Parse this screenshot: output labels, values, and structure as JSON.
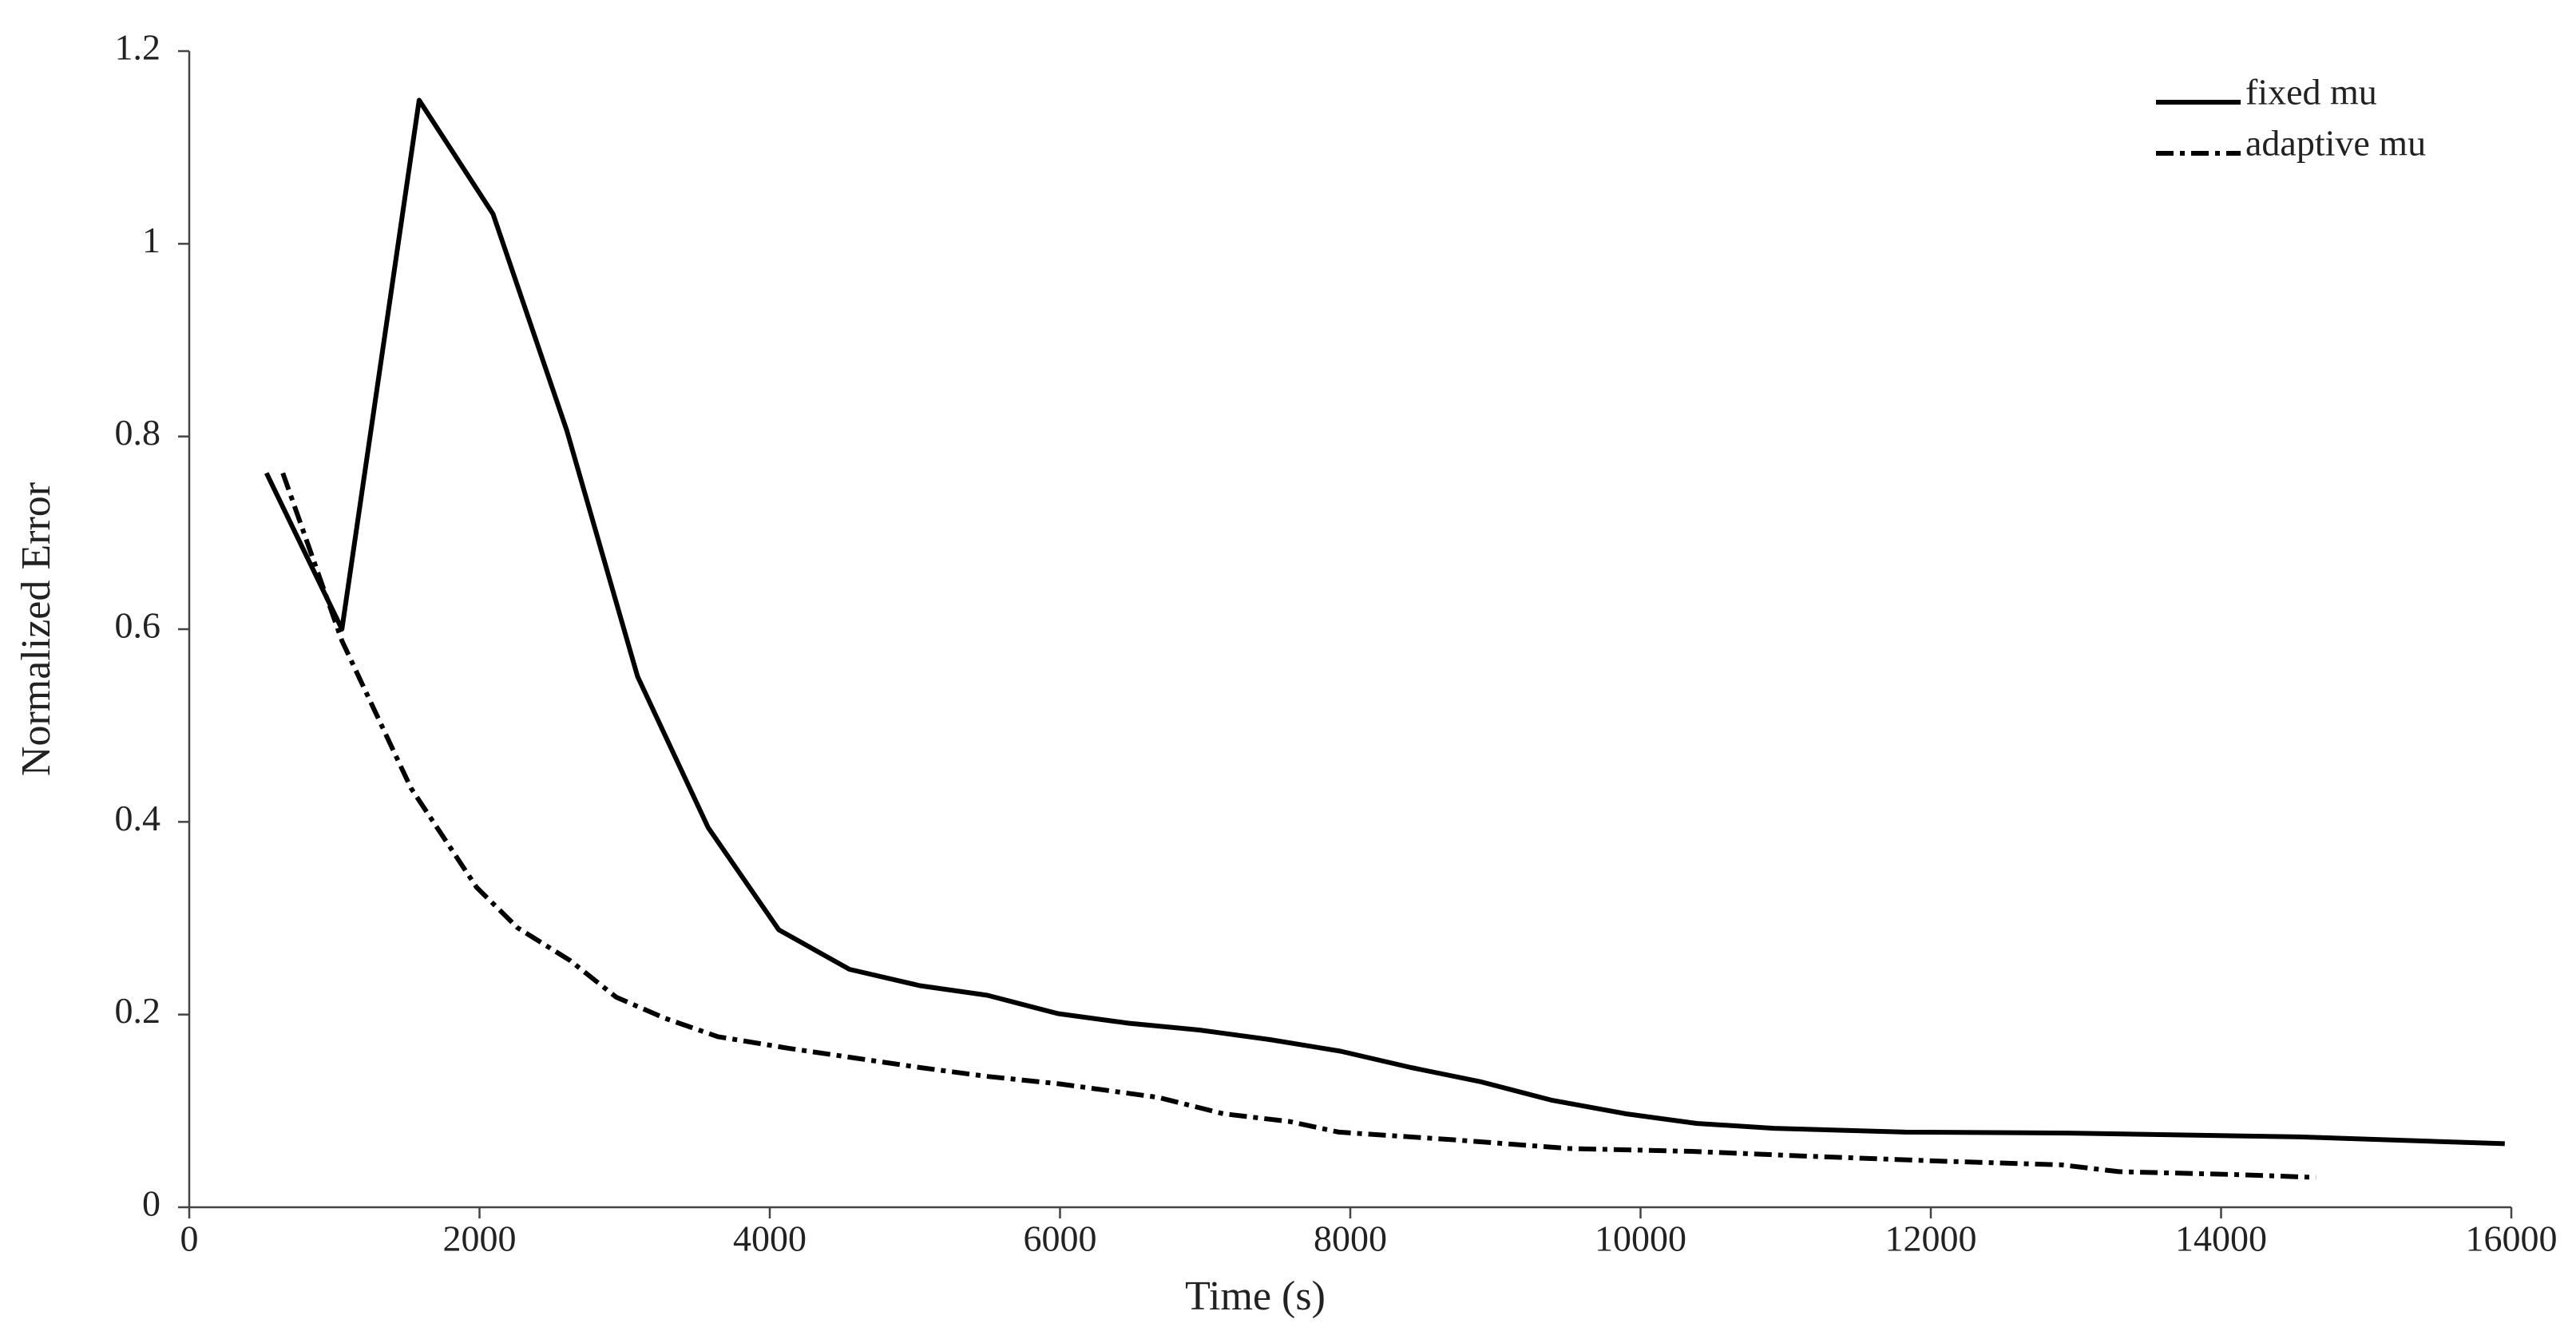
{
  "chart_data": {
    "type": "line",
    "x_label": "Time (s)",
    "y_label": "Normalized Error",
    "xlim": [
      0,
      16000
    ],
    "xticks": [
      0,
      2000,
      4000,
      6000,
      8000,
      10000,
      12000,
      14000,
      16000
    ],
    "ylim": [
      0,
      1.2
    ],
    "yticks": [
      0,
      0.2,
      0.4,
      0.6,
      0.8,
      1,
      1.2
    ],
    "legend": "upper right",
    "series": [
      {
        "name": "fixed mu",
        "color": "#000000",
        "dash": "solid",
        "x": [
          532,
          1052,
          1584,
          2093,
          2602,
          3089,
          3576,
          4062,
          4549,
          5035,
          5499,
          5986,
          6472,
          6959,
          7445,
          7932,
          8418,
          8905,
          9392,
          9901,
          10387,
          10919,
          11825,
          12956,
          14540,
          15955
        ],
        "values": [
          0.762,
          0.6,
          1.149,
          1.031,
          0.806,
          0.551,
          0.394,
          0.288,
          0.247,
          0.23,
          0.22,
          0.201,
          0.191,
          0.184,
          0.174,
          0.162,
          0.145,
          0.13,
          0.111,
          0.097,
          0.087,
          0.082,
          0.078,
          0.077,
          0.073,
          0.066
        ]
      },
      {
        "name": "adaptive mu",
        "color": "#000000",
        "dash": "dashdot",
        "x": [
          645,
          1052,
          1528,
          1980,
          2263,
          2625,
          2942,
          3281,
          3643,
          4130,
          4583,
          5035,
          5488,
          5997,
          6676,
          7128,
          7581,
          7921,
          8713,
          9505,
          10353,
          11145,
          12050,
          12899,
          13296,
          14088,
          14653
        ],
        "values": [
          0.762,
          0.588,
          0.435,
          0.332,
          0.29,
          0.256,
          0.218,
          0.196,
          0.177,
          0.165,
          0.155,
          0.145,
          0.136,
          0.128,
          0.114,
          0.097,
          0.089,
          0.078,
          0.07,
          0.061,
          0.058,
          0.053,
          0.048,
          0.044,
          0.037,
          0.034,
          0.031
        ]
      }
    ]
  }
}
